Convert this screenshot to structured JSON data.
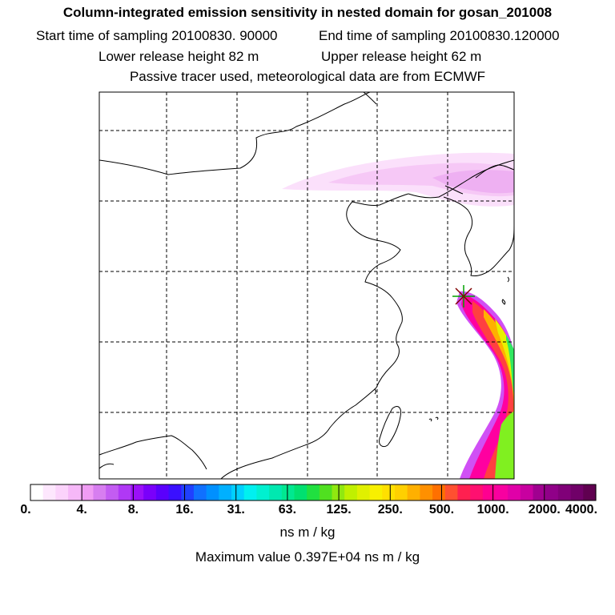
{
  "header": {
    "title": "Column-integrated emission sensitivity in nested domain for gosan_201008",
    "start_time": "Start time of sampling 20100830. 90000",
    "end_time": "End time of sampling 20100830.120000",
    "lower_height": "Lower release height   82 m",
    "upper_height": "Upper release height   62 m",
    "tracer_note": "Passive tracer used, meteorological data are from ECMWF"
  },
  "colorbar": {
    "units": "ns m / kg",
    "ticks": [
      "0.",
      "4.",
      "8.",
      "16.",
      "31.",
      "63.",
      "125.",
      "250.",
      "500.",
      "1000.",
      "2000.",
      "4000."
    ],
    "colors": [
      "#ffffff",
      "#fde7fd",
      "#fbd3fb",
      "#f6b8f8",
      "#f09cf4",
      "#d77ef0",
      "#c35cf2",
      "#b038f5",
      "#9b10f8",
      "#7a00fa",
      "#5a00fc",
      "#3a10ff",
      "#2040ff",
      "#1070ff",
      "#0090ff",
      "#00b0ff",
      "#00d0ff",
      "#00f0f0",
      "#00f0d0",
      "#00e8b0",
      "#00e890",
      "#00e070",
      "#20e040",
      "#50e020",
      "#90e810",
      "#c0f000",
      "#e0f000",
      "#f8f000",
      "#ffe000",
      "#ffd000",
      "#ffb000",
      "#ff9000",
      "#ff7000",
      "#ff5030",
      "#ff2050",
      "#ff1070",
      "#ff0090",
      "#f800a0",
      "#e000a8",
      "#c800a0",
      "#a00090",
      "#900088",
      "#800078",
      "#700068",
      "#600050"
    ]
  },
  "maximum_value": "Maximum value  0.397E+04 ns m / kg",
  "map": {
    "receptor_marker": "asterisk",
    "plume_colors": [
      "#f8c8f8",
      "#f0b0f0",
      "#e090ee",
      "#ff00a0",
      "#ff2060",
      "#ff6020",
      "#ffd000",
      "#e8ff00",
      "#60ff40",
      "#00f0ff"
    ]
  }
}
